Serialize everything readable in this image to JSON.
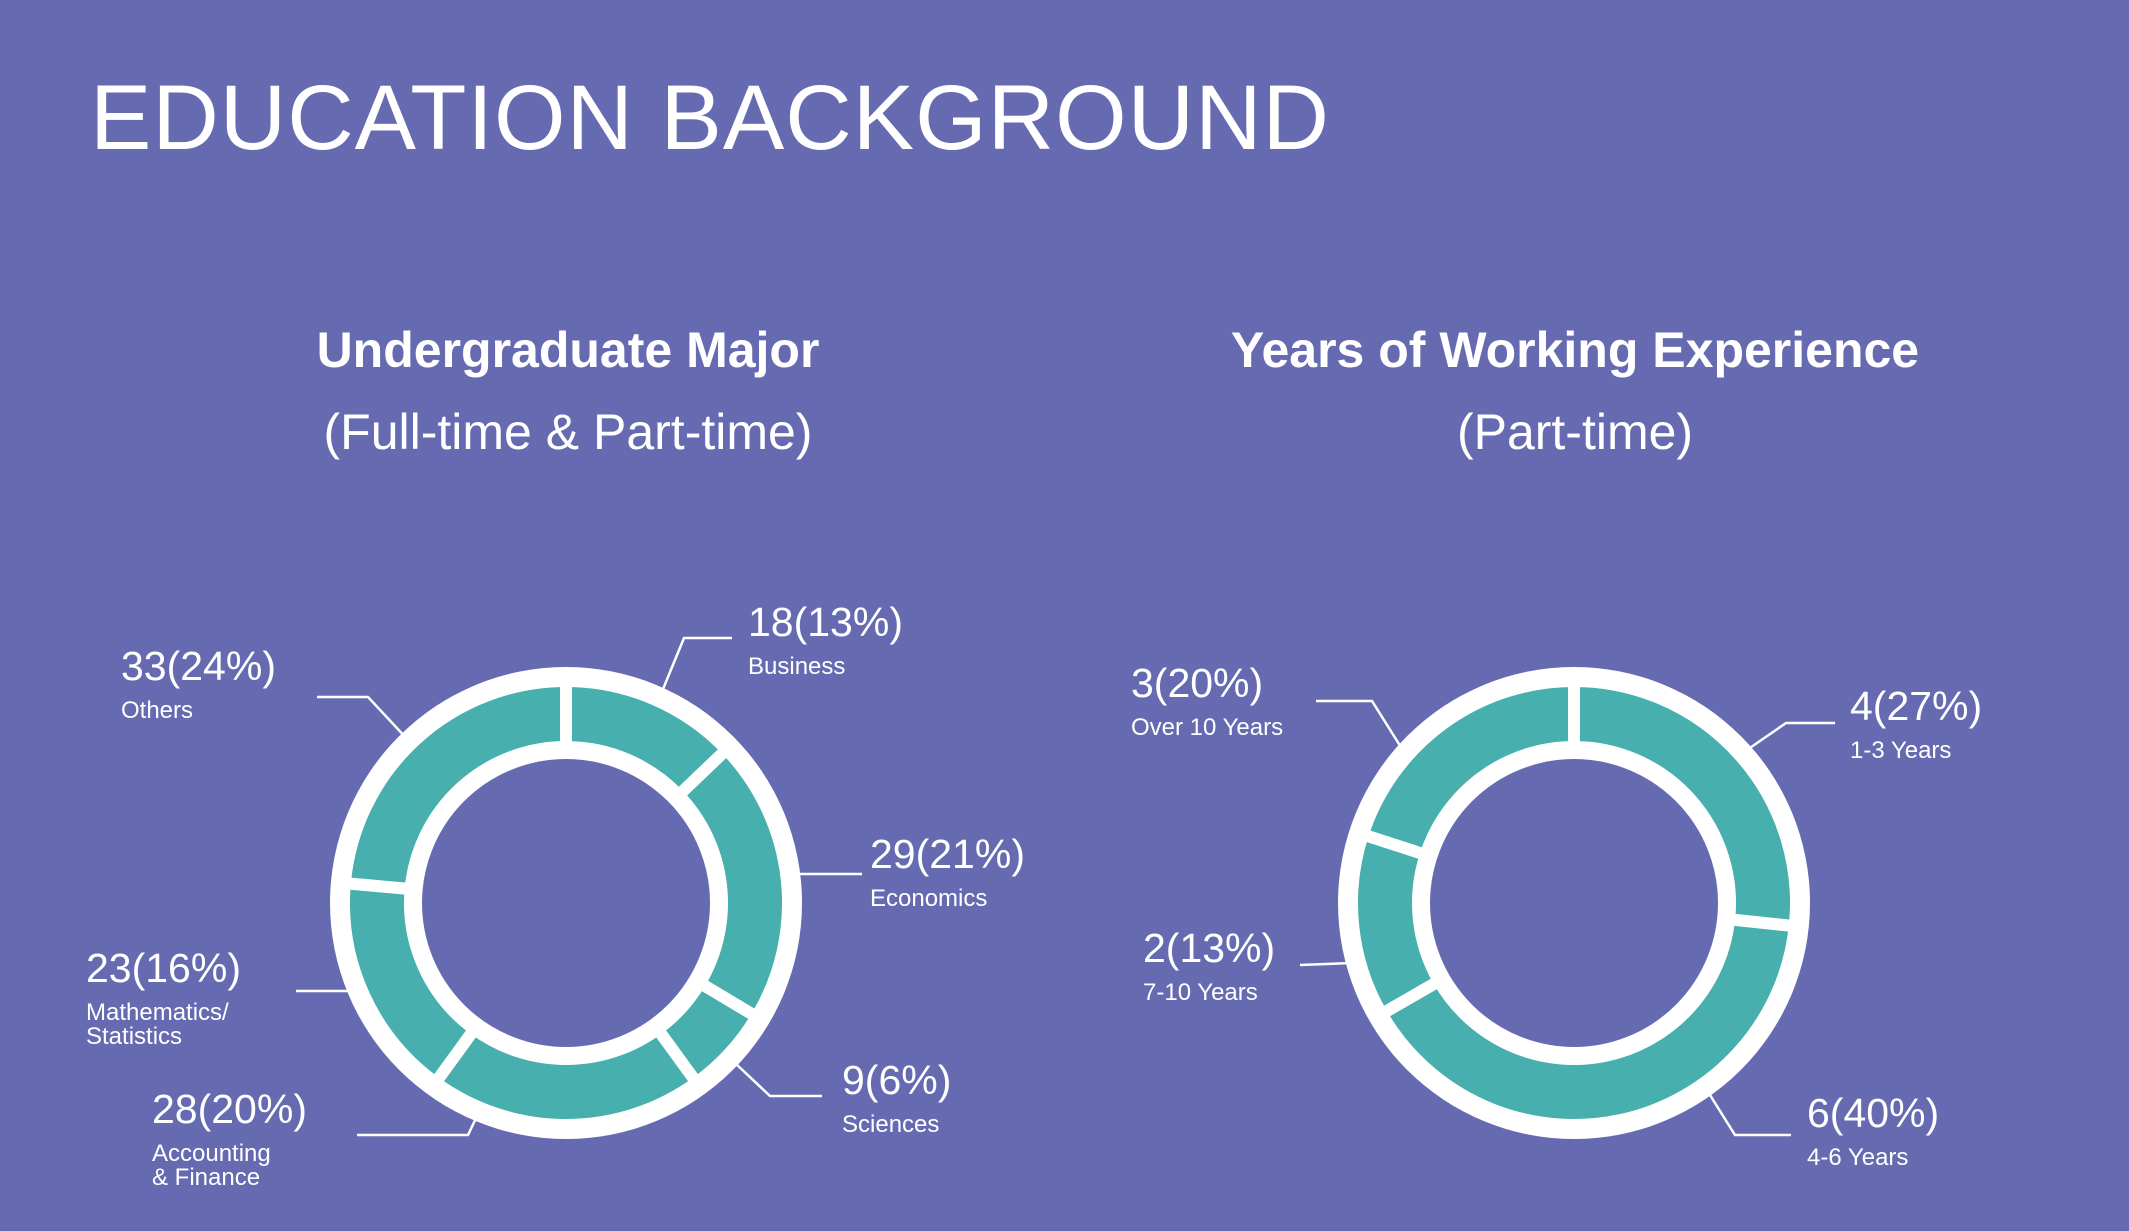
{
  "page": {
    "title": "EDUCATION BACKGROUND"
  },
  "colors": {
    "background": "#666bb1",
    "segment": "#47afad",
    "outline": "#ffffff"
  },
  "chart_data": [
    {
      "type": "pie",
      "title": "Undergraduate Major",
      "subtitle": "(Full-time & Part-time)",
      "series": [
        {
          "name": "Business",
          "value": 18,
          "value_text": "18(13%)",
          "label_lines": [
            "Business"
          ]
        },
        {
          "name": "Economics",
          "value": 29,
          "value_text": "29(21%)",
          "label_lines": [
            "Economics"
          ]
        },
        {
          "name": "Sciences",
          "value": 9,
          "value_text": "9(6%)",
          "label_lines": [
            "Sciences"
          ]
        },
        {
          "name": "Accounting & Finance",
          "value": 28,
          "value_text": "28(20%)",
          "label_lines": [
            "Accounting",
            "& Finance"
          ]
        },
        {
          "name": "Mathematics/ Statistics",
          "value": 23,
          "value_text": "23(16%)",
          "label_lines": [
            "Mathematics/",
            "Statistics"
          ]
        },
        {
          "name": "Others",
          "value": 33,
          "value_text": "33(24%)",
          "label_lines": [
            "Others"
          ]
        }
      ]
    },
    {
      "type": "pie",
      "title": "Years of Working Experience",
      "subtitle": "(Part-time)",
      "series": [
        {
          "name": "1-3 Years",
          "value": 4,
          "value_text": "4(27%)",
          "label_lines": [
            "1-3 Years"
          ]
        },
        {
          "name": "4-6 Years",
          "value": 6,
          "value_text": "6(40%)",
          "label_lines": [
            "4-6 Years"
          ]
        },
        {
          "name": "7-10 Years",
          "value": 2,
          "value_text": "2(13%)",
          "label_lines": [
            "7-10 Years"
          ]
        },
        {
          "name": "Over 10 Years",
          "value": 3,
          "value_text": "3(20%)",
          "label_lines": [
            "Over 10 Years"
          ]
        }
      ]
    }
  ]
}
